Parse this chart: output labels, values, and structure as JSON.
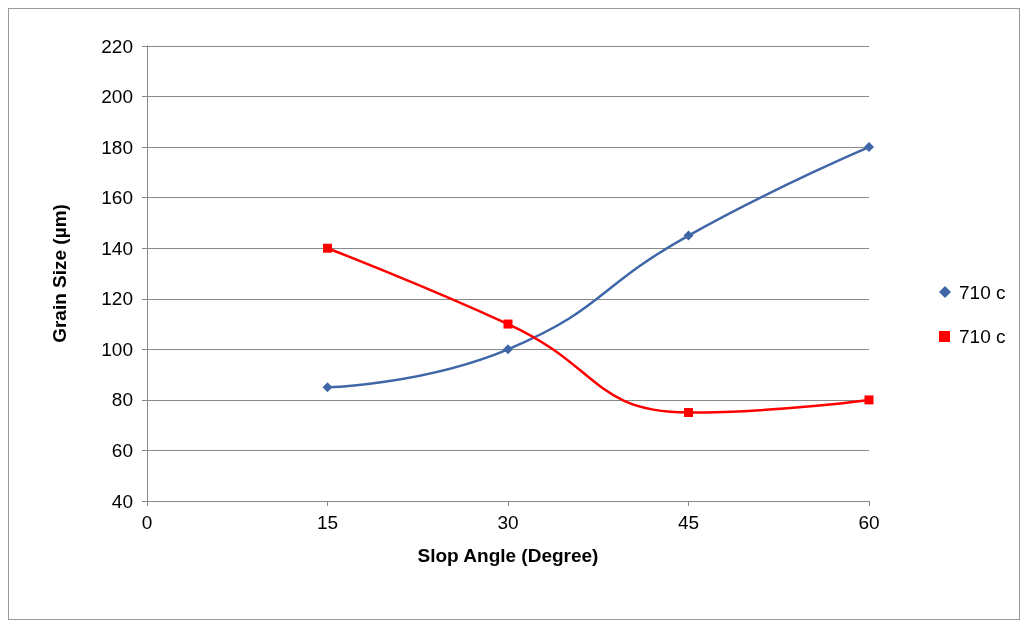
{
  "chart_data": {
    "type": "line",
    "xlabel": "Slop Angle (Degree)",
    "ylabel": "Grain Size (µm)",
    "xlim": [
      0,
      60
    ],
    "xticks": [
      0,
      15,
      30,
      45,
      60
    ],
    "ylim": [
      40,
      220
    ],
    "yticks": [
      40,
      60,
      80,
      100,
      120,
      140,
      160,
      180,
      200,
      220
    ],
    "grid": "y",
    "legend": "right",
    "series": [
      {
        "name": "710 c",
        "color": "#3f67a8",
        "marker": "diamond",
        "x": [
          15,
          30,
          45,
          60
        ],
        "values": [
          85,
          100,
          145,
          180
        ]
      },
      {
        "name": "710 c",
        "color": "#ff0000",
        "marker": "square",
        "x": [
          15,
          30,
          45,
          60
        ],
        "values": [
          140,
          110,
          75,
          80
        ]
      }
    ]
  }
}
